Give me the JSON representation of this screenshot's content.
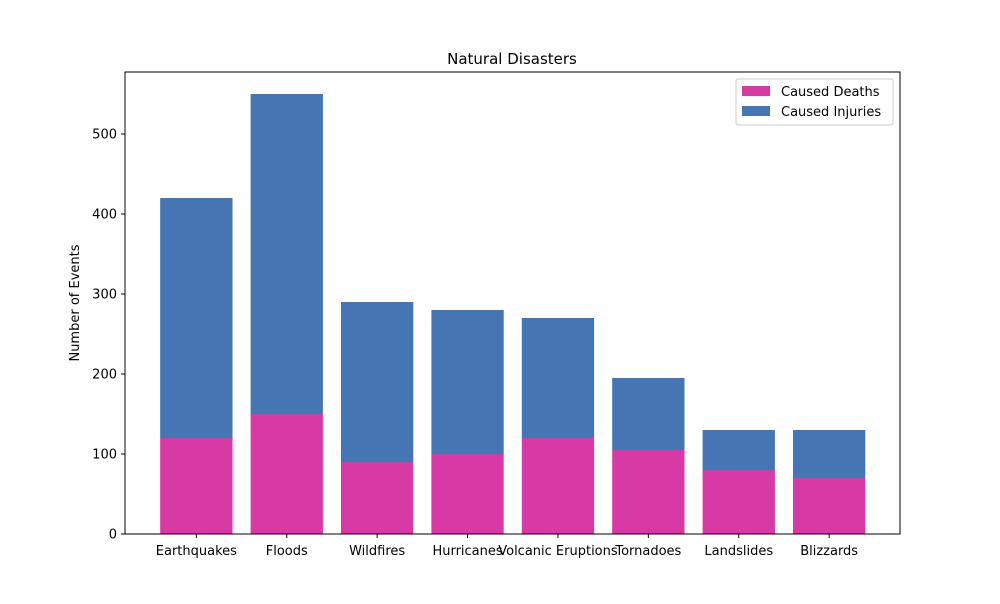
{
  "chart_data": {
    "type": "bar",
    "stacked": true,
    "title": "Natural Disasters",
    "xlabel": "",
    "ylabel": "Number of Events",
    "categories": [
      "Earthquakes",
      "Floods",
      "Wildfires",
      "Hurricanes",
      "Volcanic Eruptions",
      "Tornadoes",
      "Landslides",
      "Blizzards"
    ],
    "series": [
      {
        "name": "Caused Deaths",
        "color": "#d83aa5",
        "values": [
          120,
          150,
          90,
          100,
          120,
          105,
          80,
          70
        ]
      },
      {
        "name": "Caused Injuries",
        "color": "#4675b4",
        "values": [
          300,
          400,
          200,
          180,
          150,
          90,
          50,
          60
        ]
      }
    ],
    "ylim": [
      0,
      577.5
    ],
    "yticks": [
      0,
      100,
      200,
      300,
      400,
      500
    ],
    "grid": false,
    "legend_position": "top-right"
  }
}
